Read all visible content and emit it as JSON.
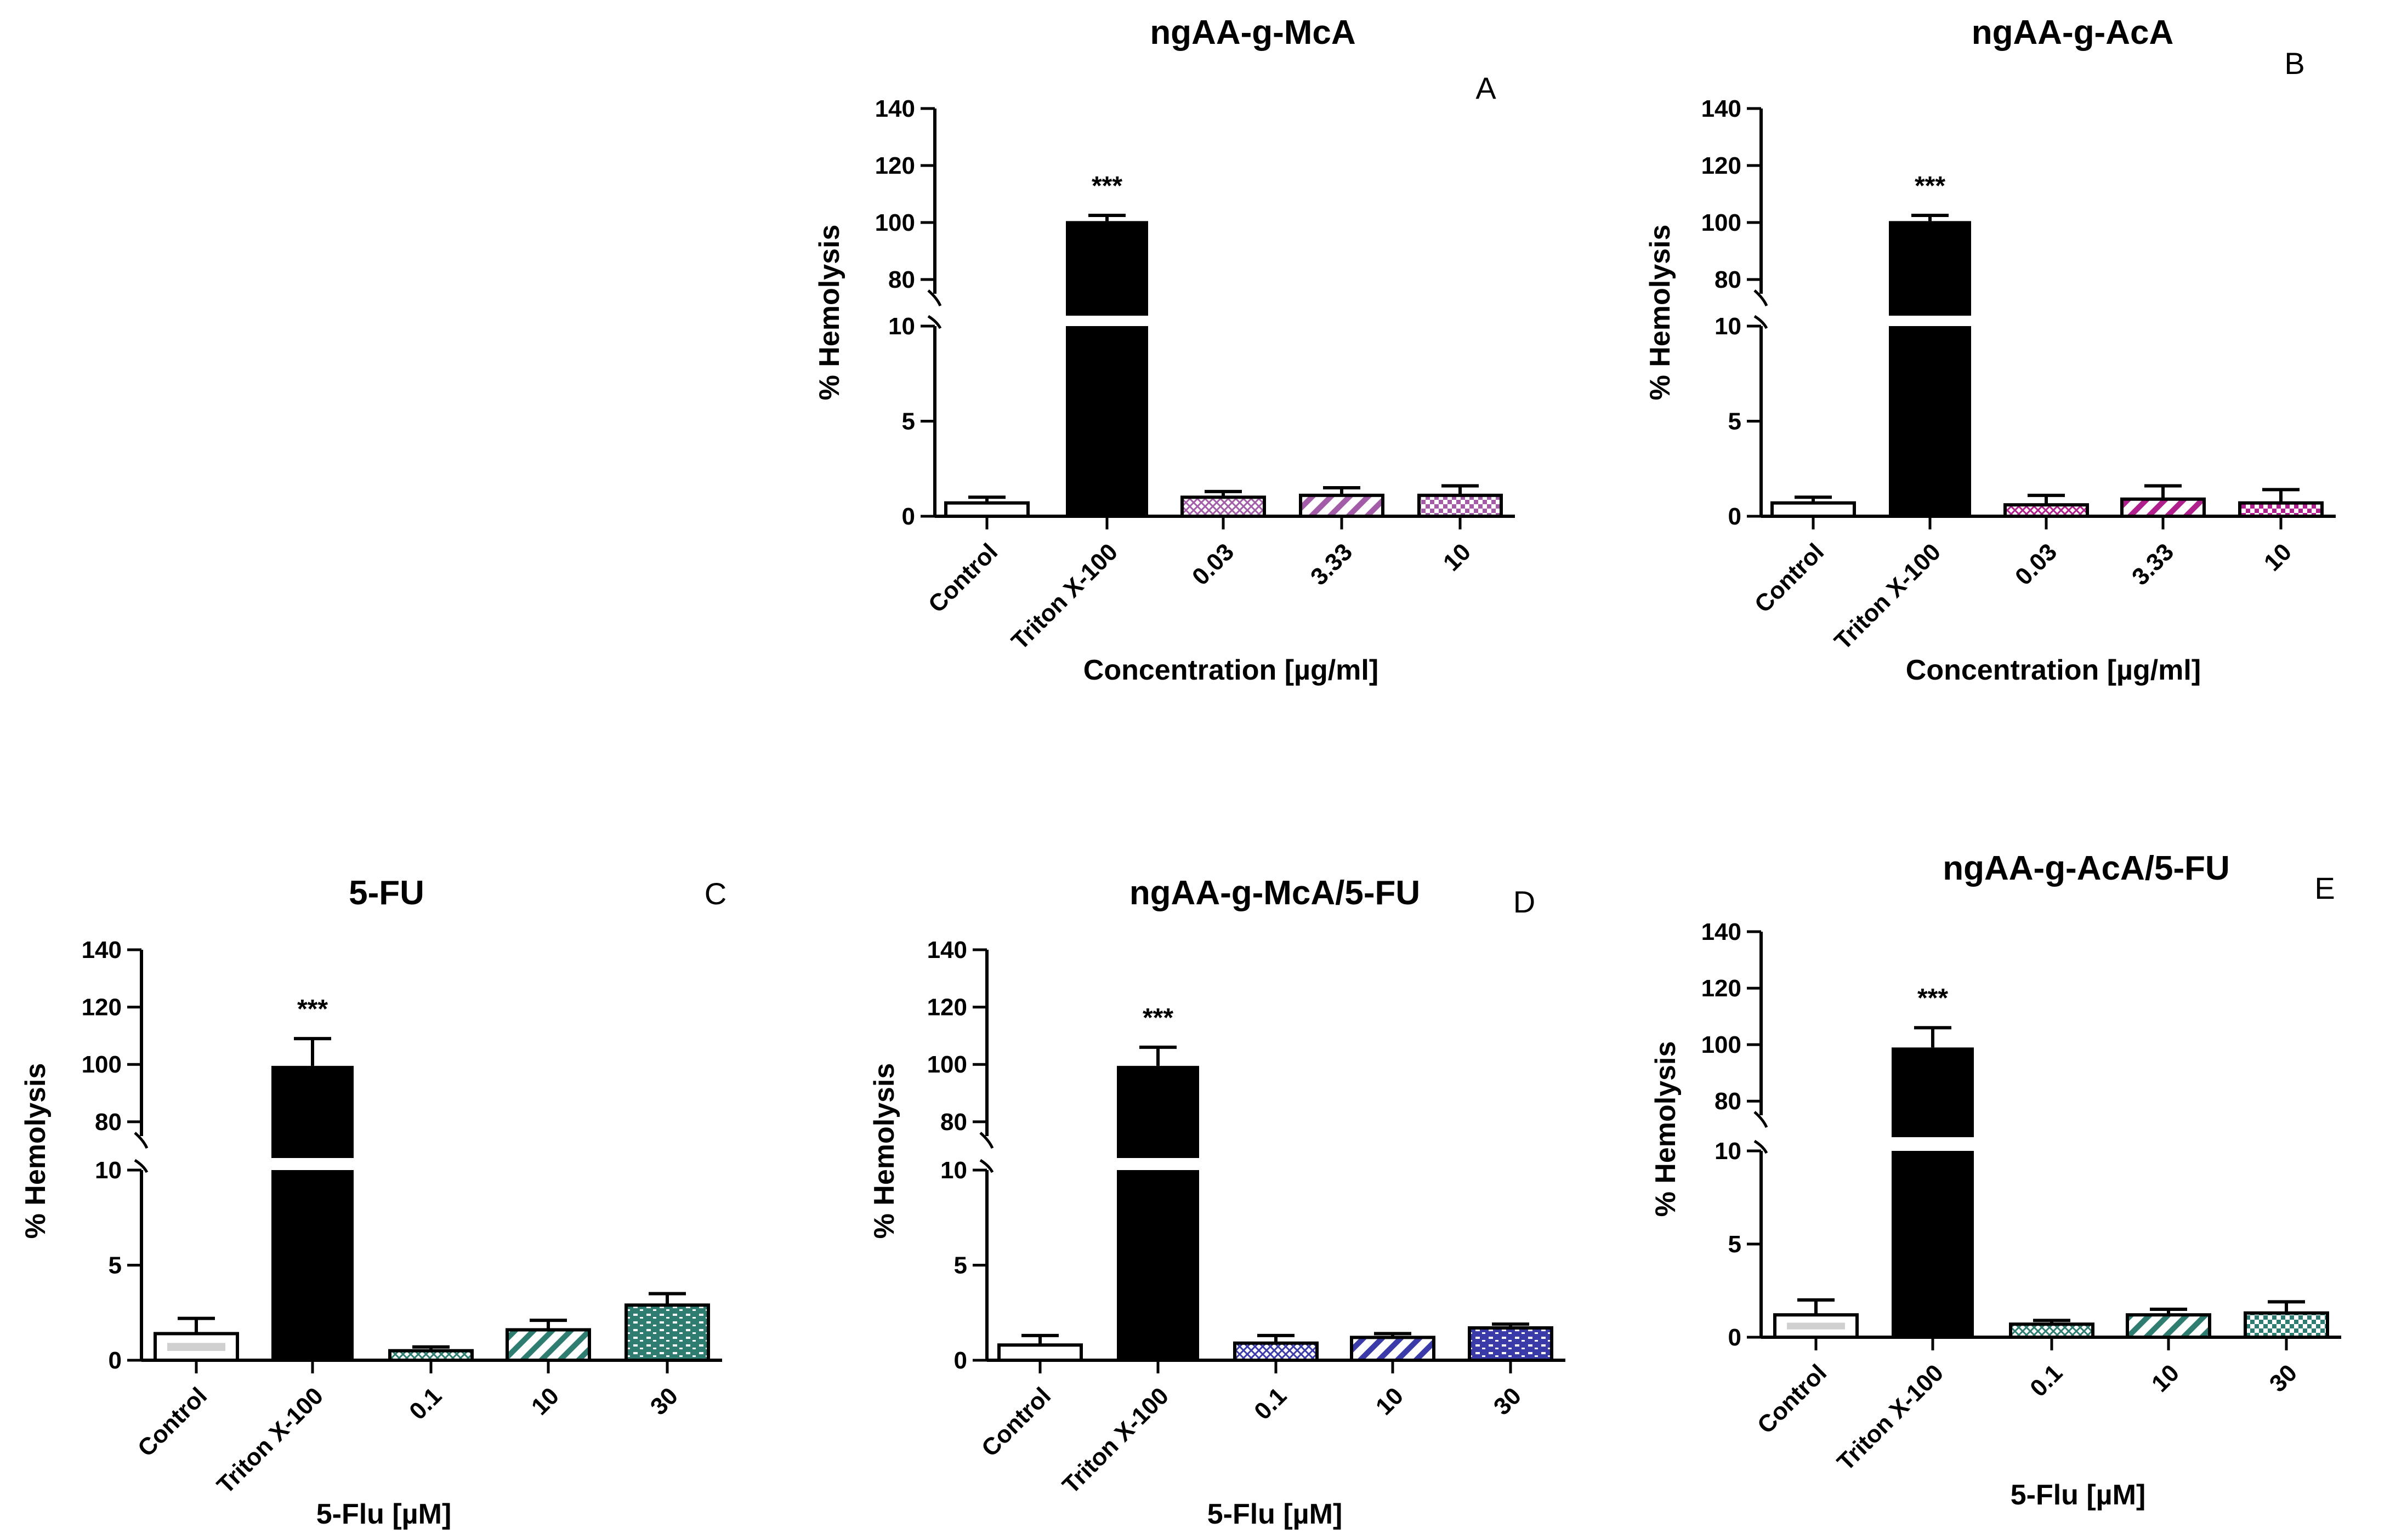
{
  "chart_data": [
    {
      "panel": "A",
      "type": "bar",
      "title": "ngAA-g-McA",
      "ylabel": "% Hemolysis",
      "xlabel": "Concentration [µg/ml]",
      "y_axis_break": {
        "lower": [
          0,
          10
        ],
        "upper": [
          75,
          140
        ]
      },
      "yticks_lower": [
        "0",
        "5",
        "10"
      ],
      "yticks_upper": [
        "80",
        "100",
        "120",
        "140"
      ],
      "categories": [
        "Control",
        "Triton X-100",
        "0.03",
        "3.33",
        "10"
      ],
      "values": [
        0.7,
        100.5,
        1.0,
        1.1,
        1.1
      ],
      "errors": [
        0.3,
        2.0,
        0.3,
        0.4,
        0.5
      ],
      "fills": [
        "white",
        "black",
        "crosshatch",
        "stripes",
        "checker"
      ],
      "colors": [
        "#ffffff",
        "#000000",
        "#a35ca8",
        "#a35ca8",
        "#a35ca8"
      ],
      "significance": [
        "",
        "***",
        "",
        "",
        ""
      ]
    },
    {
      "panel": "B",
      "type": "bar",
      "title": "ngAA-g-AcA",
      "ylabel": "% Hemolysis",
      "xlabel": "Concentration [µg/ml]",
      "y_axis_break": {
        "lower": [
          0,
          10
        ],
        "upper": [
          75,
          140
        ]
      },
      "yticks_lower": [
        "0",
        "5",
        "10"
      ],
      "yticks_upper": [
        "80",
        "100",
        "120",
        "140"
      ],
      "categories": [
        "Control",
        "Triton X-100",
        "0.03",
        "3.33",
        "10"
      ],
      "values": [
        0.7,
        100.5,
        0.6,
        0.9,
        0.7
      ],
      "errors": [
        0.3,
        2.0,
        0.5,
        0.7,
        0.7
      ],
      "fills": [
        "white",
        "black",
        "crosshatch",
        "stripes",
        "checker"
      ],
      "colors": [
        "#ffffff",
        "#000000",
        "#b0208c",
        "#b0208c",
        "#b0208c"
      ],
      "significance": [
        "",
        "***",
        "",
        "",
        ""
      ]
    },
    {
      "panel": "C",
      "type": "bar",
      "title": "5-FU",
      "ylabel": "% Hemolysis",
      "xlabel": "5-Flu [µM]",
      "y_axis_break": {
        "lower": [
          0,
          10
        ],
        "upper": [
          75,
          140
        ]
      },
      "yticks_lower": [
        "0",
        "5",
        "10"
      ],
      "yticks_upper": [
        "80",
        "100",
        "120",
        "140"
      ],
      "categories": [
        "Control",
        "Triton X-100",
        "0.1",
        "10",
        "30"
      ],
      "values": [
        1.4,
        99.5,
        0.5,
        1.6,
        2.9
      ],
      "errors": [
        0.8,
        9.5,
        0.2,
        0.5,
        0.6
      ],
      "fills": [
        "grayband",
        "black",
        "crosshatch",
        "stripes",
        "brick"
      ],
      "colors": [
        "#d0d0d0",
        "#000000",
        "#2e7d70",
        "#2e7d70",
        "#2e7d70"
      ],
      "significance": [
        "",
        "***",
        "",
        "",
        ""
      ]
    },
    {
      "panel": "D",
      "type": "bar",
      "title": "ngAA-g-McA/5-FU",
      "ylabel": "% Hemolysis",
      "xlabel": "5-Flu [µM]",
      "y_axis_break": {
        "lower": [
          0,
          10
        ],
        "upper": [
          75,
          140
        ]
      },
      "yticks_lower": [
        "0",
        "5",
        "10"
      ],
      "yticks_upper": [
        "80",
        "100",
        "120",
        "140"
      ],
      "categories": [
        "Control",
        "Triton X-100",
        "0.1",
        "10",
        "30"
      ],
      "values": [
        0.8,
        99.5,
        0.9,
        1.2,
        1.7
      ],
      "errors": [
        0.5,
        6.5,
        0.4,
        0.2,
        0.2
      ],
      "fills": [
        "white",
        "black",
        "crosshatch",
        "stripes",
        "brick"
      ],
      "colors": [
        "#ffffff",
        "#000000",
        "#3a3aa8",
        "#3a3aa8",
        "#3a3aa8"
      ],
      "significance": [
        "",
        "***",
        "",
        "",
        ""
      ]
    },
    {
      "panel": "E",
      "type": "bar",
      "title": "ngAA-g-AcA/5-FU",
      "ylabel": "% Hemolysis",
      "xlabel": "5-Flu [µM]",
      "y_axis_break": {
        "lower": [
          0,
          10
        ],
        "upper": [
          75,
          140
        ]
      },
      "yticks_lower": [
        "0",
        "5",
        "10"
      ],
      "yticks_upper": [
        "80",
        "100",
        "120",
        "140"
      ],
      "categories": [
        "Control",
        "Triton X-100",
        "0.1",
        "10",
        "30"
      ],
      "values": [
        1.2,
        99.0,
        0.7,
        1.2,
        1.3
      ],
      "errors": [
        0.8,
        7.0,
        0.2,
        0.3,
        0.6
      ],
      "fills": [
        "grayband",
        "black",
        "crosshatch",
        "stripes",
        "checker"
      ],
      "colors": [
        "#d0d0d0",
        "#000000",
        "#2e7d70",
        "#2e7d70",
        "#2e7d70"
      ],
      "significance": [
        "",
        "***",
        "",
        "",
        ""
      ]
    }
  ]
}
